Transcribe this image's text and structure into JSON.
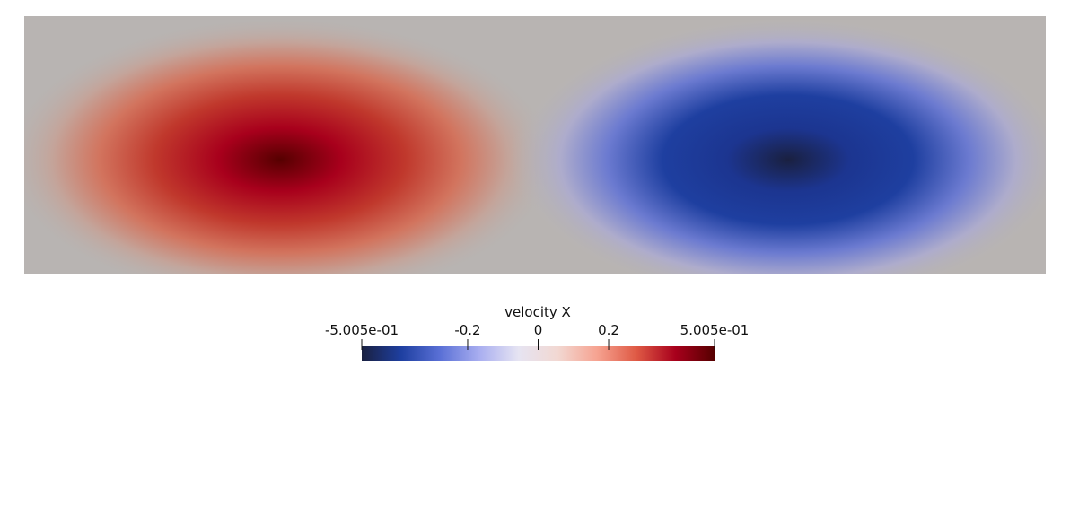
{
  "chart_data": {
    "type": "heatmap",
    "title": "",
    "field_name": "velocity X",
    "cells": [
      {
        "name": "left-vortex",
        "sign": 1,
        "peak_value": 0.5005
      },
      {
        "name": "right-vortex",
        "sign": -1,
        "peak_value": -0.5005
      }
    ],
    "colorbar": {
      "title": "velocity X",
      "range": [
        -0.5005,
        0.5005
      ],
      "colormap": "Cool to Warm (Extended)",
      "ticks": [
        {
          "value": -0.5005,
          "label": "-5.005e-01"
        },
        {
          "value": -0.2,
          "label": "-0.2"
        },
        {
          "value": 0,
          "label": "0"
        },
        {
          "value": 0.2,
          "label": "0.2"
        },
        {
          "value": 0.5005,
          "label": "5.005e-01"
        }
      ]
    }
  },
  "colors": {
    "background": "#ffffff",
    "field_neutral": "#b8b4b2",
    "stops": [
      "#1a2040",
      "#1e3fa0",
      "#5a70d6",
      "#a9aef0",
      "#e6e4f2",
      "#f2d8d2",
      "#f6a391",
      "#df5a45",
      "#a8001c",
      "#560000"
    ]
  }
}
